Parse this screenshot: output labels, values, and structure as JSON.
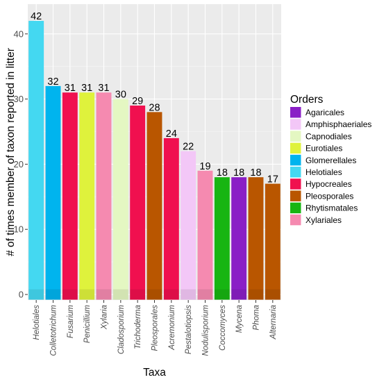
{
  "chart_data": {
    "type": "bar",
    "xlabel": "Taxa",
    "ylabel": "# of times member of taxon reported in litter",
    "ylim": [
      -1,
      45
    ],
    "yticks": [
      0,
      10,
      20,
      30,
      40
    ],
    "grid": true,
    "legend": {
      "title": "Orders",
      "placement": "right",
      "entries": [
        {
          "name": "Agaricales",
          "color": "#8a1fc6"
        },
        {
          "name": "Amphisphaeriales",
          "color": "#f3c7f7"
        },
        {
          "name": "Capnodiales",
          "color": "#e4f7c2"
        },
        {
          "name": "Eurotiales",
          "color": "#dff23c"
        },
        {
          "name": "Glomerellales",
          "color": "#00b4ee"
        },
        {
          "name": "Helotiales",
          "color": "#44d8f1"
        },
        {
          "name": "Hypocreales",
          "color": "#f0104f"
        },
        {
          "name": "Pleosporales",
          "color": "#b95600"
        },
        {
          "name": "Rhytismatales",
          "color": "#17b512"
        },
        {
          "name": "Xylariales",
          "color": "#f58ab0"
        }
      ]
    },
    "categories": [
      "Helotiales",
      "Colletotrichum",
      "Fusarium",
      "Penicillium",
      "Xylaria",
      "Cladosporium",
      "Trichoderma",
      "Pleosporales",
      "Acremonium",
      "Pestalotiopsis",
      "Nodulisporium",
      "Coccomyces",
      "Mycena",
      "Phoma",
      "Alternaria"
    ],
    "values": [
      42,
      32,
      31,
      31,
      31,
      30,
      29,
      28,
      24,
      22,
      19,
      18,
      18,
      18,
      17
    ],
    "bar_orders": [
      "Helotiales",
      "Glomerellales",
      "Hypocreales",
      "Eurotiales",
      "Xylariales",
      "Capnodiales",
      "Hypocreales",
      "Pleosporales",
      "Hypocreales",
      "Amphisphaeriales",
      "Xylariales",
      "Rhytismatales",
      "Agaricales",
      "Pleosporales",
      "Pleosporales"
    ]
  }
}
